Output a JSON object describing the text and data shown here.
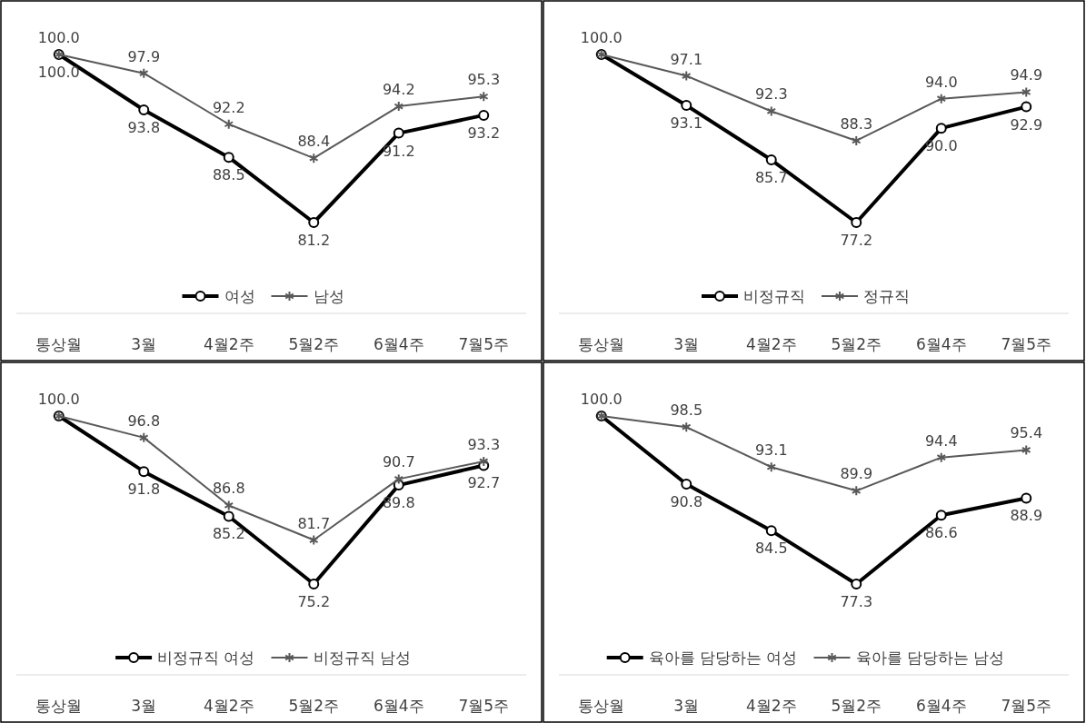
{
  "chart_data": [
    {
      "type": "line",
      "categories": [
        "통상월",
        "3월",
        "4월2주",
        "5월2주",
        "6월4주",
        "7월5주"
      ],
      "legend": "bottom",
      "series": [
        {
          "name": "여성",
          "color": "#000000",
          "marker": "circle",
          "values": [
            100.0,
            93.8,
            88.5,
            81.2,
            91.2,
            93.2
          ],
          "value_labels": [
            "100.0",
            "93.8",
            "88.5",
            "81.2",
            "91.2",
            "93.2"
          ]
        },
        {
          "name": "남성",
          "color": "#595959",
          "marker": "cross",
          "values": [
            100.0,
            97.9,
            92.2,
            88.4,
            94.2,
            95.3
          ],
          "value_labels": [
            "100.0",
            "97.9",
            "92.2",
            "88.4",
            "94.2",
            "95.3"
          ]
        }
      ]
    },
    {
      "type": "line",
      "categories": [
        "통상월",
        "3월",
        "4월2주",
        "5월2주",
        "6월4주",
        "7월5주"
      ],
      "legend": "bottom",
      "series": [
        {
          "name": "비정규직",
          "color": "#000000",
          "marker": "circle",
          "values": [
            100.0,
            93.1,
            85.7,
            77.2,
            90.0,
            92.9
          ],
          "value_labels": [
            null,
            "93.1",
            "85.7",
            "77.2",
            "90.0",
            "92.9"
          ]
        },
        {
          "name": "정규직",
          "color": "#595959",
          "marker": "cross",
          "values": [
            100.0,
            97.1,
            92.3,
            88.3,
            94.0,
            94.9
          ],
          "value_labels": [
            "100.0",
            "97.1",
            "92.3",
            "88.3",
            "94.0",
            "94.9"
          ]
        }
      ]
    },
    {
      "type": "line",
      "categories": [
        "통상월",
        "3월",
        "4월2주",
        "5월2주",
        "6월4주",
        "7월5주"
      ],
      "legend": "bottom",
      "series": [
        {
          "name": "비정규직 여성",
          "color": "#000000",
          "marker": "circle",
          "values": [
            100.0,
            91.8,
            85.2,
            75.2,
            89.8,
            92.7
          ],
          "value_labels": [
            null,
            "91.8",
            "85.2",
            "75.2",
            "89.8",
            "92.7"
          ]
        },
        {
          "name": "비정규직 남성",
          "color": "#595959",
          "marker": "cross",
          "values": [
            100.0,
            96.8,
            86.8,
            81.7,
            90.7,
            93.3
          ],
          "value_labels": [
            "100.0",
            "96.8",
            "86.8",
            "81.7",
            "90.7",
            "93.3"
          ]
        }
      ]
    },
    {
      "type": "line",
      "categories": [
        "통상월",
        "3월",
        "4월2주",
        "5월2주",
        "6월4주",
        "7월5주"
      ],
      "legend": "bottom",
      "series": [
        {
          "name": "육아를 담당하는 여성",
          "color": "#000000",
          "marker": "circle",
          "values": [
            100.0,
            90.8,
            84.5,
            77.3,
            86.6,
            88.9
          ],
          "value_labels": [
            null,
            "90.8",
            "84.5",
            "77.3",
            "86.6",
            "88.9"
          ]
        },
        {
          "name": "육아를 담당하는 남성",
          "color": "#595959",
          "marker": "cross",
          "values": [
            100.0,
            98.5,
            93.1,
            89.9,
            94.4,
            95.4
          ],
          "value_labels": [
            "100.0",
            "98.5",
            "93.1",
            "89.9",
            "94.4",
            "95.4"
          ]
        }
      ]
    }
  ]
}
